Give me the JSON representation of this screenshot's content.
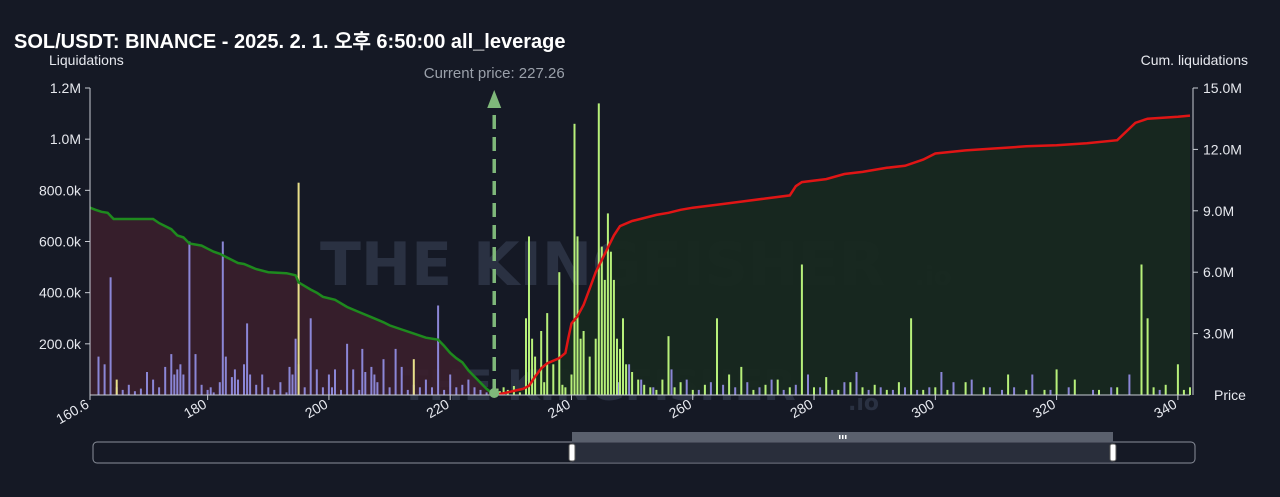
{
  "title": "SOL/USDT: BINANCE - 2025. 2. 1. 오후 6:50:00 all_leverage",
  "watermark": {
    "text": "THE KINGFISHER",
    "suffix": ".io"
  },
  "colors": {
    "background": "#151925",
    "short_bar": "#8b86d6",
    "long_bar": "#b7f07a",
    "short_bar_yellow": "#e8e08a",
    "cum_short_line": "#1e8a1e",
    "cum_long_line": "#e01515",
    "short_fill": "#3a1f2c",
    "long_fill": "#17281f",
    "current_price": "#7fb87a"
  },
  "chart_data": {
    "type": "bar",
    "title": "SOL/USDT: BINANCE - 2025. 2. 1. 오후 6:50:00 all_leverage",
    "xlabel": "Price",
    "ylabel": "Liquidations",
    "y2label": "Cum. liquidations",
    "xlim": [
      160.6,
      342
    ],
    "ylim": [
      0,
      1200000
    ],
    "y2lim": [
      0,
      15000000
    ],
    "x_ticks": [
      {
        "v": 160.6,
        "l": "160.6"
      },
      {
        "v": 180,
        "l": "180"
      },
      {
        "v": 200,
        "l": "200"
      },
      {
        "v": 220,
        "l": "220"
      },
      {
        "v": 240,
        "l": "240"
      },
      {
        "v": 260,
        "l": "260"
      },
      {
        "v": 280,
        "l": "280"
      },
      {
        "v": 300,
        "l": "300"
      },
      {
        "v": 320,
        "l": "320"
      },
      {
        "v": 340,
        "l": "340"
      }
    ],
    "y_ticks": [
      {
        "v": 200000,
        "l": "200.0k"
      },
      {
        "v": 400000,
        "l": "400.0k"
      },
      {
        "v": 600000,
        "l": "600.0k"
      },
      {
        "v": 800000,
        "l": "800.0k"
      },
      {
        "v": 1000000,
        "l": "1.0M"
      },
      {
        "v": 1200000,
        "l": "1.2M"
      }
    ],
    "y2_ticks": [
      {
        "v": 3000000,
        "l": "3.0M"
      },
      {
        "v": 6000000,
        "l": "6.0M"
      },
      {
        "v": 9000000,
        "l": "9.0M"
      },
      {
        "v": 12000000,
        "l": "12.0M"
      },
      {
        "v": 15000000,
        "l": "15.0M"
      }
    ],
    "current_price": {
      "value": 227.26,
      "label": "Current price: 227.26"
    },
    "short_bars": [
      [
        162,
        150000
      ],
      [
        163,
        120000
      ],
      [
        164,
        460000
      ],
      [
        165,
        30000
      ],
      [
        166,
        20000
      ],
      [
        167,
        40000
      ],
      [
        168,
        15000
      ],
      [
        169,
        25000
      ],
      [
        170,
        90000
      ],
      [
        171,
        60000
      ],
      [
        172,
        30000
      ],
      [
        173,
        110000
      ],
      [
        174,
        160000
      ],
      [
        174.5,
        80000
      ],
      [
        175,
        100000
      ],
      [
        175.5,
        120000
      ],
      [
        176,
        80000
      ],
      [
        177,
        600000
      ],
      [
        178,
        160000
      ],
      [
        179,
        40000
      ],
      [
        180,
        20000
      ],
      [
        180.5,
        30000
      ],
      [
        181,
        10000
      ],
      [
        182,
        50000
      ],
      [
        182.5,
        600000
      ],
      [
        183,
        150000
      ],
      [
        184,
        70000
      ],
      [
        184.5,
        100000
      ],
      [
        185,
        60000
      ],
      [
        186,
        120000
      ],
      [
        186.5,
        280000
      ],
      [
        187,
        80000
      ],
      [
        188,
        40000
      ],
      [
        189,
        80000
      ],
      [
        190,
        30000
      ],
      [
        191,
        20000
      ],
      [
        192,
        50000
      ],
      [
        193,
        10000
      ],
      [
        193.5,
        110000
      ],
      [
        194,
        80000
      ],
      [
        194.5,
        220000
      ],
      [
        195,
        120000
      ],
      [
        196,
        30000
      ],
      [
        197,
        300000
      ],
      [
        198,
        100000
      ],
      [
        199,
        30000
      ],
      [
        200,
        80000
      ],
      [
        200.5,
        30000
      ],
      [
        201,
        100000
      ],
      [
        202,
        20000
      ],
      [
        203,
        200000
      ],
      [
        204,
        100000
      ],
      [
        205,
        20000
      ],
      [
        205.5,
        180000
      ],
      [
        206,
        90000
      ],
      [
        207,
        110000
      ],
      [
        207.5,
        80000
      ],
      [
        208,
        50000
      ],
      [
        209,
        140000
      ],
      [
        210,
        30000
      ],
      [
        211,
        180000
      ],
      [
        212,
        110000
      ],
      [
        213,
        20000
      ],
      [
        214,
        40000
      ],
      [
        215,
        30000
      ],
      [
        216,
        60000
      ],
      [
        217,
        30000
      ],
      [
        218,
        350000
      ],
      [
        219,
        20000
      ],
      [
        220,
        80000
      ],
      [
        221,
        30000
      ],
      [
        222,
        40000
      ],
      [
        223,
        60000
      ],
      [
        224,
        30000
      ],
      [
        225,
        20000
      ],
      [
        226,
        10000
      ]
    ],
    "short_bars_yellow": [
      [
        165,
        60000
      ],
      [
        195,
        830000
      ],
      [
        214,
        140000
      ]
    ],
    "long_bars": [
      [
        227.8,
        25000
      ],
      [
        228.2,
        15000
      ],
      [
        228.8,
        30000
      ],
      [
        229.5,
        20000
      ],
      [
        230.5,
        35000
      ],
      [
        231.5,
        10000
      ],
      [
        232.5,
        300000
      ],
      [
        233,
        620000
      ],
      [
        233.5,
        220000
      ],
      [
        234,
        150000
      ],
      [
        235,
        250000
      ],
      [
        235.5,
        50000
      ],
      [
        236,
        320000
      ],
      [
        237,
        120000
      ],
      [
        238,
        480000
      ],
      [
        238.5,
        40000
      ],
      [
        239,
        30000
      ],
      [
        240,
        80000
      ],
      [
        240.5,
        1060000
      ],
      [
        241,
        620000
      ],
      [
        241.5,
        220000
      ],
      [
        242,
        250000
      ],
      [
        243,
        150000
      ],
      [
        244,
        220000
      ],
      [
        244.5,
        1140000
      ],
      [
        245,
        580000
      ],
      [
        245.5,
        450000
      ],
      [
        246,
        710000
      ],
      [
        246.5,
        560000
      ],
      [
        247,
        450000
      ],
      [
        247.5,
        220000
      ],
      [
        248,
        180000
      ],
      [
        248.5,
        300000
      ],
      [
        249,
        120000
      ],
      [
        250,
        90000
      ],
      [
        251,
        60000
      ],
      [
        252,
        40000
      ],
      [
        253,
        30000
      ],
      [
        254,
        20000
      ],
      [
        255,
        60000
      ],
      [
        256,
        230000
      ],
      [
        257,
        30000
      ],
      [
        258,
        50000
      ],
      [
        260,
        20000
      ],
      [
        262,
        40000
      ],
      [
        264,
        300000
      ],
      [
        266,
        80000
      ],
      [
        268,
        110000
      ],
      [
        270,
        20000
      ],
      [
        272,
        40000
      ],
      [
        274,
        60000
      ],
      [
        276,
        30000
      ],
      [
        278,
        510000
      ],
      [
        280,
        30000
      ],
      [
        282,
        70000
      ],
      [
        284,
        20000
      ],
      [
        286,
        50000
      ],
      [
        288,
        30000
      ],
      [
        290,
        40000
      ],
      [
        292,
        20000
      ],
      [
        294,
        50000
      ],
      [
        296,
        300000
      ],
      [
        298,
        20000
      ],
      [
        300,
        30000
      ],
      [
        302,
        20000
      ],
      [
        305,
        50000
      ],
      [
        308,
        30000
      ],
      [
        312,
        80000
      ],
      [
        315,
        20000
      ],
      [
        318,
        20000
      ],
      [
        320,
        100000
      ],
      [
        323,
        60000
      ],
      [
        327,
        20000
      ],
      [
        330,
        30000
      ],
      [
        334,
        510000
      ],
      [
        335,
        300000
      ],
      [
        336,
        30000
      ],
      [
        338,
        40000
      ],
      [
        340,
        120000
      ],
      [
        341,
        20000
      ],
      [
        342,
        30000
      ]
    ],
    "long_bars_blue": [
      [
        247.8,
        50000
      ],
      [
        249.5,
        120000
      ],
      [
        251.5,
        60000
      ],
      [
        253.5,
        30000
      ],
      [
        256.5,
        100000
      ],
      [
        259,
        60000
      ],
      [
        261,
        20000
      ],
      [
        263,
        50000
      ],
      [
        265,
        40000
      ],
      [
        267,
        30000
      ],
      [
        269,
        50000
      ],
      [
        271,
        30000
      ],
      [
        273,
        60000
      ],
      [
        275,
        20000
      ],
      [
        277,
        40000
      ],
      [
        279,
        80000
      ],
      [
        281,
        30000
      ],
      [
        283,
        20000
      ],
      [
        285,
        50000
      ],
      [
        287,
        90000
      ],
      [
        289,
        20000
      ],
      [
        291,
        30000
      ],
      [
        293,
        20000
      ],
      [
        295,
        30000
      ],
      [
        297,
        20000
      ],
      [
        299,
        30000
      ],
      [
        301,
        90000
      ],
      [
        303,
        50000
      ],
      [
        306,
        60000
      ],
      [
        309,
        30000
      ],
      [
        311,
        20000
      ],
      [
        313,
        30000
      ],
      [
        316,
        80000
      ],
      [
        319,
        20000
      ],
      [
        322,
        30000
      ],
      [
        326,
        20000
      ],
      [
        329,
        30000
      ],
      [
        332,
        80000
      ],
      [
        337,
        20000
      ]
    ],
    "cum_short": [
      [
        160.6,
        9150000
      ],
      [
        161.5,
        9050000
      ],
      [
        162.5,
        8950000
      ],
      [
        163.5,
        8900000
      ],
      [
        164.5,
        8600000
      ],
      [
        171,
        8600000
      ],
      [
        172,
        8400000
      ],
      [
        174,
        8100000
      ],
      [
        175,
        7800000
      ],
      [
        176,
        7700000
      ],
      [
        177,
        7400000
      ],
      [
        179,
        7300000
      ],
      [
        180,
        7150000
      ],
      [
        181,
        7000000
      ],
      [
        182,
        6900000
      ],
      [
        183,
        6750000
      ],
      [
        185,
        6450000
      ],
      [
        186,
        6400000
      ],
      [
        188,
        6150000
      ],
      [
        190,
        6000000
      ],
      [
        193,
        5950000
      ],
      [
        194.5,
        5850000
      ],
      [
        195,
        5500000
      ],
      [
        197,
        5150000
      ],
      [
        198,
        5000000
      ],
      [
        199,
        4800000
      ],
      [
        201,
        4650000
      ],
      [
        203,
        4300000
      ],
      [
        205,
        4050000
      ],
      [
        207,
        3800000
      ],
      [
        209,
        3550000
      ],
      [
        210,
        3400000
      ],
      [
        212,
        3200000
      ],
      [
        214,
        3000000
      ],
      [
        216,
        2800000
      ],
      [
        218,
        2700000
      ],
      [
        219,
        2400000
      ],
      [
        220,
        2050000
      ],
      [
        221,
        1800000
      ],
      [
        222,
        1600000
      ],
      [
        223,
        1200000
      ],
      [
        224,
        900000
      ],
      [
        225,
        600000
      ],
      [
        226,
        300000
      ],
      [
        227.26,
        0
      ]
    ],
    "cum_long": [
      [
        227.26,
        0
      ],
      [
        229,
        100000
      ],
      [
        230.5,
        200000
      ],
      [
        232,
        300000
      ],
      [
        233,
        450000
      ],
      [
        234,
        900000
      ],
      [
        235,
        1300000
      ],
      [
        236,
        1550000
      ],
      [
        238,
        1800000
      ],
      [
        239,
        2050000
      ],
      [
        239.5,
        2800000
      ],
      [
        240,
        3500000
      ],
      [
        241,
        3850000
      ],
      [
        242,
        4400000
      ],
      [
        243,
        5200000
      ],
      [
        244,
        6000000
      ],
      [
        245,
        6600000
      ],
      [
        246,
        7200000
      ],
      [
        247,
        7800000
      ],
      [
        248,
        8250000
      ],
      [
        250,
        8500000
      ],
      [
        252,
        8650000
      ],
      [
        254,
        8800000
      ],
      [
        256,
        8900000
      ],
      [
        258,
        9050000
      ],
      [
        260,
        9150000
      ],
      [
        264,
        9300000
      ],
      [
        268,
        9450000
      ],
      [
        272,
        9600000
      ],
      [
        276,
        9750000
      ],
      [
        277,
        10200000
      ],
      [
        278,
        10400000
      ],
      [
        282,
        10550000
      ],
      [
        285,
        10800000
      ],
      [
        288,
        10900000
      ],
      [
        292,
        11100000
      ],
      [
        295,
        11200000
      ],
      [
        298,
        11500000
      ],
      [
        300,
        11800000
      ],
      [
        305,
        11950000
      ],
      [
        310,
        12050000
      ],
      [
        315,
        12150000
      ],
      [
        320,
        12200000
      ],
      [
        325,
        12300000
      ],
      [
        330,
        12450000
      ],
      [
        333,
        13300000
      ],
      [
        335,
        13500000
      ],
      [
        340,
        13600000
      ],
      [
        342,
        13650000
      ]
    ]
  }
}
